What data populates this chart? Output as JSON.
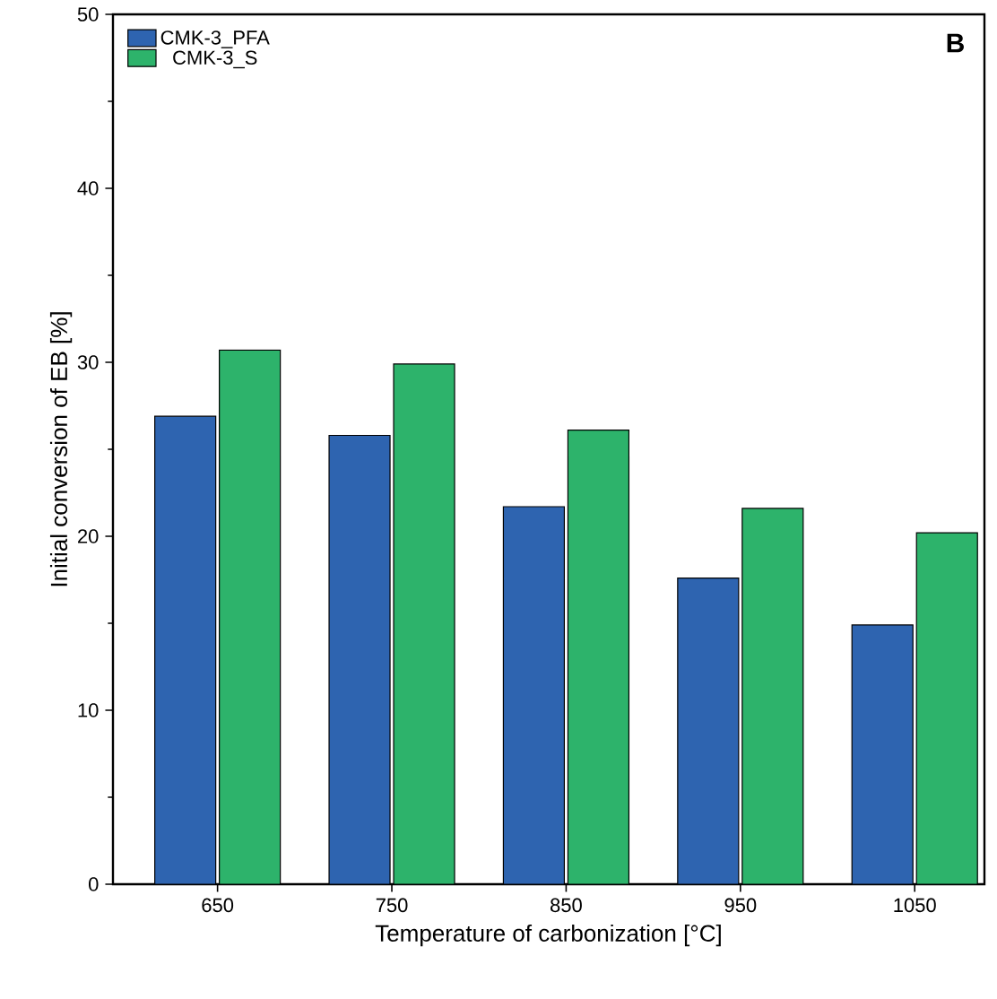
{
  "chart_data": {
    "type": "bar",
    "xlabel": "Temperature of carbonization [°C]",
    "ylabel": "Initial conversion of EB [%]",
    "categories": [
      "650",
      "750",
      "850",
      "950",
      "1050"
    ],
    "series": [
      {
        "name": "CMK-3_PFA",
        "color": "#2e64b0",
        "values": [
          26.9,
          25.8,
          21.7,
          17.6,
          14.9
        ]
      },
      {
        "name": "CMK-3_S",
        "color": "#2db36b",
        "values": [
          30.7,
          29.9,
          26.1,
          21.6,
          20.2
        ]
      }
    ],
    "ylim": [
      0,
      50
    ],
    "yticks": [
      0,
      10,
      20,
      30,
      40,
      50
    ],
    "legend": "top left",
    "grid": false,
    "annotations": [
      "B"
    ]
  }
}
